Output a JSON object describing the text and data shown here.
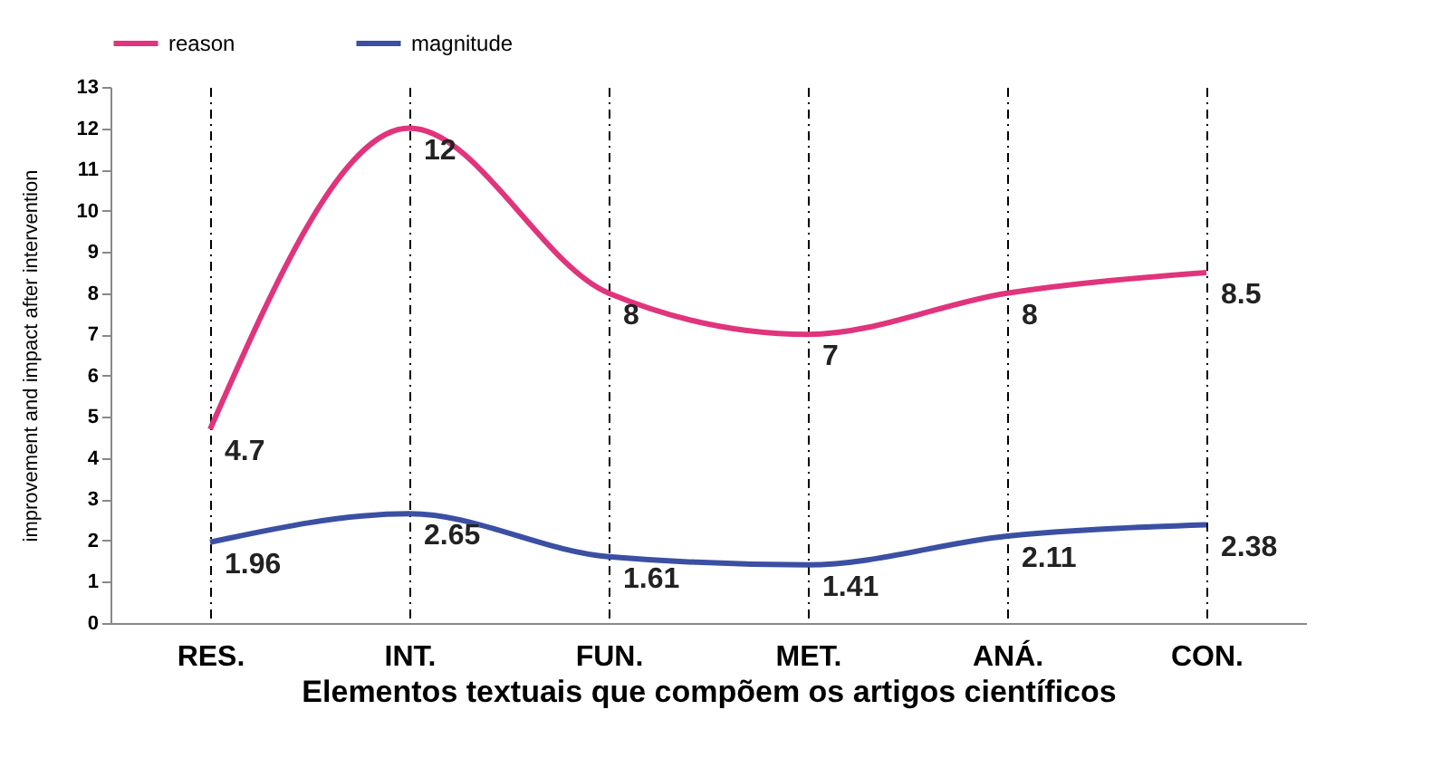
{
  "chart_data": {
    "type": "line",
    "xlabel": "Elementos textuais que compõem os artigos científicos",
    "ylabel": "improvement and impact after intervention",
    "categories": [
      "RES.",
      "INT.",
      "FUN.",
      "MET.",
      "ANÁ.",
      "CON."
    ],
    "series": [
      {
        "name": "reason",
        "color": "#e0347c",
        "values": [
          4.7,
          12,
          8,
          7,
          8,
          8.5
        ]
      },
      {
        "name": "magnitude",
        "color": "#3b4fa3",
        "values": [
          1.96,
          2.65,
          1.61,
          1.41,
          2.11,
          2.38
        ]
      }
    ],
    "ylim": [
      0,
      13
    ],
    "yticks": [
      0,
      1,
      2,
      3,
      4,
      5,
      6,
      7,
      8,
      9,
      10,
      11,
      12,
      13
    ],
    "grid": "x",
    "legend": "top",
    "data_labels": true,
    "marker": "none",
    "line_style": "solid"
  }
}
